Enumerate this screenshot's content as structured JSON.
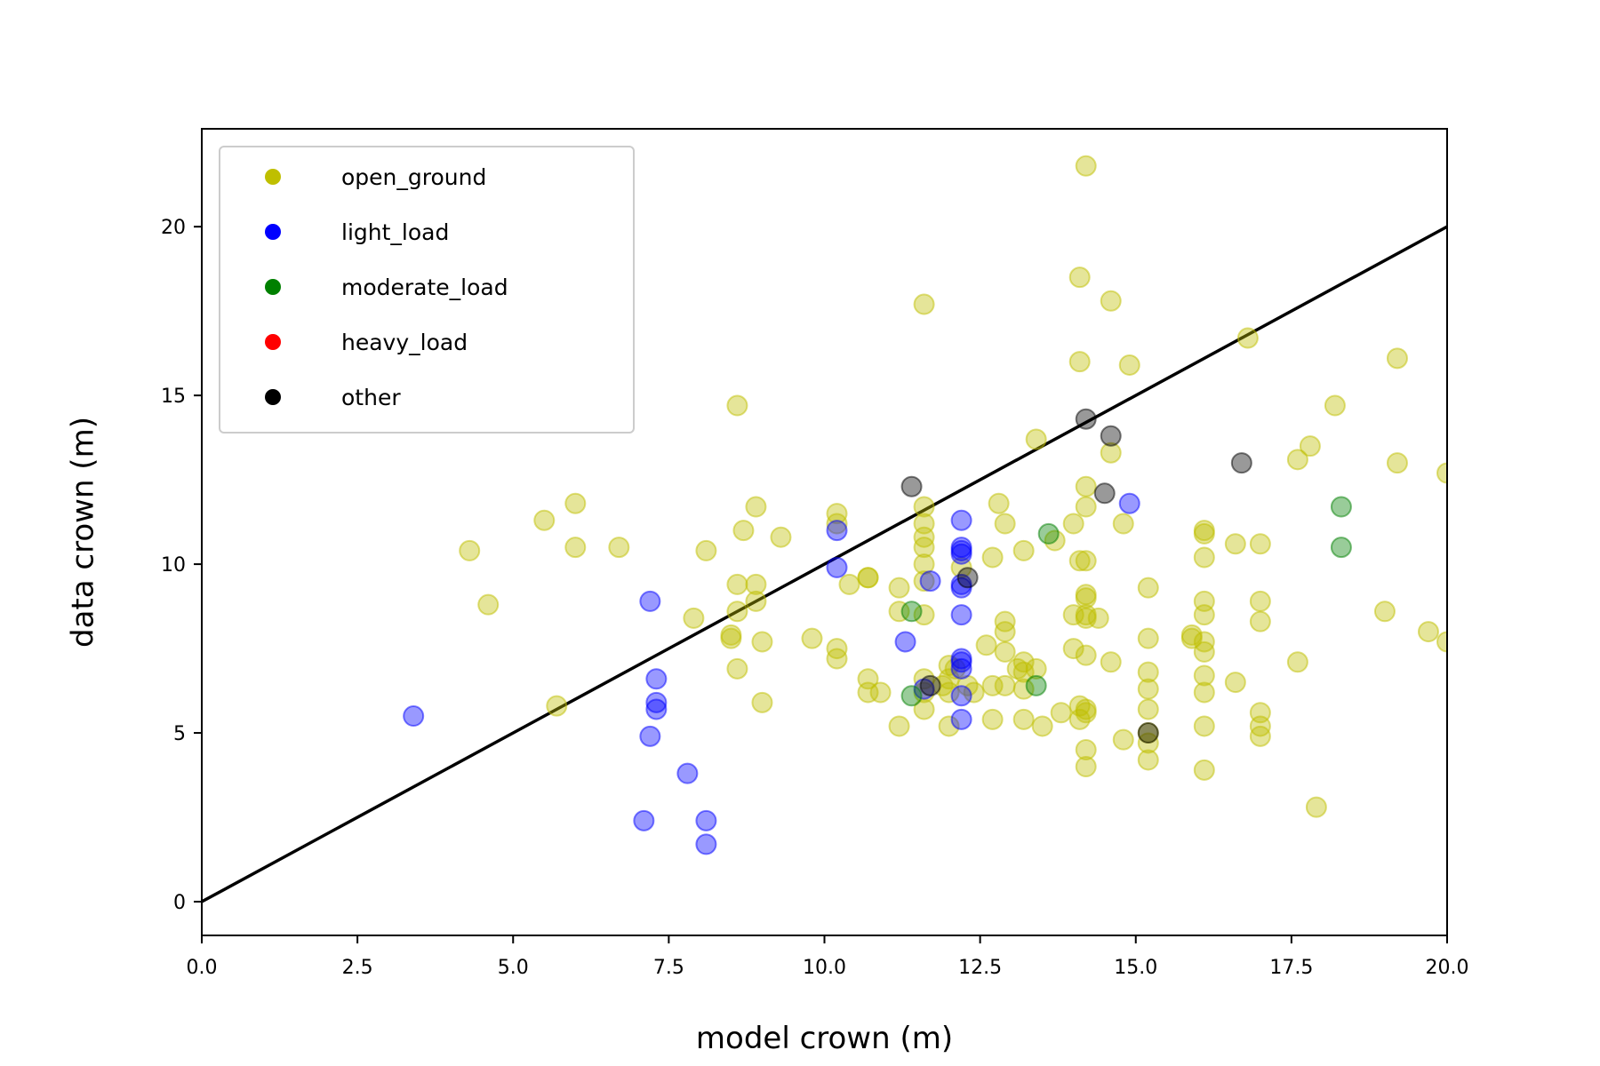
{
  "chart_data": {
    "type": "scatter",
    "title": "",
    "xlabel": "model crown (m)",
    "ylabel": "data crown (m)",
    "xlim": [
      0,
      20
    ],
    "ylim": [
      -1,
      22.9
    ],
    "xticks": [
      "0.0",
      "2.5",
      "5.0",
      "7.5",
      "10.0",
      "12.5",
      "15.0",
      "17.5",
      "20.0"
    ],
    "xtick_values": [
      0,
      2.5,
      5,
      7.5,
      10,
      12.5,
      15,
      17.5,
      20
    ],
    "yticks": [
      "0",
      "5",
      "10",
      "15",
      "20"
    ],
    "ytick_values": [
      0,
      5,
      10,
      15,
      20
    ],
    "grid": false,
    "legend_position": "top-left",
    "reference_line": {
      "x": [
        0,
        20
      ],
      "y": [
        0,
        20
      ],
      "color": "#000000"
    },
    "series": [
      {
        "name": "open_ground",
        "color": "#bfbf00",
        "alpha": 0.4,
        "points": [
          [
            4.3,
            10.4
          ],
          [
            4.6,
            8.8
          ],
          [
            5.5,
            11.3
          ],
          [
            6.0,
            11.8
          ],
          [
            6.0,
            10.5
          ],
          [
            6.7,
            10.5
          ],
          [
            5.7,
            5.8
          ],
          [
            8.1,
            10.4
          ],
          [
            7.9,
            8.4
          ],
          [
            8.5,
            7.9
          ],
          [
            8.5,
            7.8
          ],
          [
            8.6,
            9.4
          ],
          [
            8.6,
            8.6
          ],
          [
            8.6,
            6.9
          ],
          [
            8.7,
            11.0
          ],
          [
            8.6,
            14.7
          ],
          [
            8.9,
            11.7
          ],
          [
            8.9,
            9.4
          ],
          [
            8.9,
            8.9
          ],
          [
            9.0,
            7.7
          ],
          [
            9.0,
            5.9
          ],
          [
            9.3,
            10.8
          ],
          [
            9.8,
            7.8
          ],
          [
            10.2,
            11.5
          ],
          [
            10.2,
            11.2
          ],
          [
            10.2,
            7.5
          ],
          [
            10.2,
            7.2
          ],
          [
            10.4,
            9.4
          ],
          [
            10.7,
            9.6
          ],
          [
            10.7,
            9.6
          ],
          [
            10.7,
            6.6
          ],
          [
            10.7,
            6.2
          ],
          [
            11.2,
            9.3
          ],
          [
            11.2,
            8.6
          ],
          [
            11.2,
            5.2
          ],
          [
            11.6,
            17.7
          ],
          [
            11.6,
            11.7
          ],
          [
            11.6,
            11.2
          ],
          [
            11.6,
            10.8
          ],
          [
            11.6,
            10.5
          ],
          [
            11.6,
            10.0
          ],
          [
            11.6,
            9.5
          ],
          [
            11.6,
            8.5
          ],
          [
            11.6,
            6.6
          ],
          [
            11.6,
            6.2
          ],
          [
            11.6,
            5.7
          ],
          [
            12.0,
            7.0
          ],
          [
            12.0,
            6.6
          ],
          [
            12.0,
            6.2
          ],
          [
            12.0,
            5.2
          ],
          [
            12.2,
            9.9
          ],
          [
            12.3,
            6.4
          ],
          [
            12.4,
            6.2
          ],
          [
            12.6,
            7.6
          ],
          [
            12.7,
            6.4
          ],
          [
            12.7,
            5.4
          ],
          [
            12.7,
            10.2
          ],
          [
            12.8,
            11.8
          ],
          [
            12.9,
            11.2
          ],
          [
            12.9,
            8.3
          ],
          [
            12.9,
            8.0
          ],
          [
            12.9,
            7.4
          ],
          [
            12.9,
            6.4
          ],
          [
            13.2,
            10.4
          ],
          [
            13.2,
            7.1
          ],
          [
            13.2,
            6.8
          ],
          [
            13.2,
            6.3
          ],
          [
            13.2,
            5.4
          ],
          [
            13.4,
            13.7
          ],
          [
            13.4,
            6.9
          ],
          [
            13.5,
            5.2
          ],
          [
            13.7,
            10.7
          ],
          [
            14.0,
            11.2
          ],
          [
            14.0,
            8.5
          ],
          [
            14.0,
            7.5
          ],
          [
            14.1,
            18.5
          ],
          [
            14.1,
            16.0
          ],
          [
            14.1,
            10.1
          ],
          [
            14.1,
            5.8
          ],
          [
            14.1,
            5.4
          ],
          [
            14.2,
            21.8
          ],
          [
            14.2,
            12.3
          ],
          [
            14.2,
            11.7
          ],
          [
            14.2,
            10.1
          ],
          [
            14.2,
            9.1
          ],
          [
            14.2,
            9.0
          ],
          [
            14.2,
            8.5
          ],
          [
            14.2,
            8.4
          ],
          [
            14.2,
            7.3
          ],
          [
            14.2,
            5.7
          ],
          [
            14.2,
            5.6
          ],
          [
            14.2,
            4.5
          ],
          [
            14.2,
            4.0
          ],
          [
            14.4,
            8.4
          ],
          [
            14.6,
            17.8
          ],
          [
            14.6,
            13.3
          ],
          [
            14.6,
            7.1
          ],
          [
            14.8,
            11.2
          ],
          [
            14.8,
            4.8
          ],
          [
            14.9,
            15.9
          ],
          [
            15.2,
            9.3
          ],
          [
            15.2,
            7.8
          ],
          [
            15.2,
            6.8
          ],
          [
            15.2,
            6.3
          ],
          [
            15.2,
            5.7
          ],
          [
            15.2,
            5.0
          ],
          [
            15.2,
            4.2
          ],
          [
            15.9,
            7.9
          ],
          [
            15.9,
            7.8
          ],
          [
            16.1,
            11.0
          ],
          [
            16.1,
            10.9
          ],
          [
            16.1,
            10.2
          ],
          [
            16.1,
            8.9
          ],
          [
            16.1,
            8.5
          ],
          [
            16.1,
            7.7
          ],
          [
            16.1,
            7.4
          ],
          [
            16.1,
            6.7
          ],
          [
            16.1,
            6.2
          ],
          [
            16.1,
            5.2
          ],
          [
            16.1,
            3.9
          ],
          [
            16.6,
            10.6
          ],
          [
            16.6,
            6.5
          ],
          [
            16.8,
            16.7
          ],
          [
            17.0,
            10.6
          ],
          [
            17.0,
            8.9
          ],
          [
            17.0,
            8.3
          ],
          [
            17.0,
            5.6
          ],
          [
            17.0,
            5.2
          ],
          [
            17.0,
            4.9
          ],
          [
            17.6,
            13.1
          ],
          [
            17.6,
            7.1
          ],
          [
            17.8,
            13.5
          ],
          [
            17.9,
            2.8
          ],
          [
            18.2,
            14.7
          ],
          [
            19.0,
            8.6
          ],
          [
            19.2,
            16.1
          ],
          [
            19.2,
            13.0
          ],
          [
            19.7,
            8.0
          ],
          [
            20.0,
            12.7
          ],
          [
            20.0,
            7.7
          ],
          [
            11.9,
            6.4
          ],
          [
            12.1,
            6.9
          ],
          [
            10.9,
            6.2
          ],
          [
            13.1,
            6.9
          ],
          [
            13.8,
            5.6
          ],
          [
            15.2,
            4.7
          ]
        ]
      },
      {
        "name": "light_load",
        "color": "#0000ff",
        "alpha": 0.4,
        "points": [
          [
            3.4,
            5.5
          ],
          [
            7.2,
            8.9
          ],
          [
            7.3,
            6.6
          ],
          [
            7.3,
            5.9
          ],
          [
            7.3,
            5.7
          ],
          [
            7.2,
            4.9
          ],
          [
            7.8,
            3.8
          ],
          [
            7.1,
            2.4
          ],
          [
            8.1,
            2.4
          ],
          [
            8.1,
            1.7
          ],
          [
            10.2,
            11.0
          ],
          [
            10.2,
            9.9
          ],
          [
            11.3,
            7.7
          ],
          [
            11.7,
            9.5
          ],
          [
            12.2,
            11.3
          ],
          [
            12.2,
            10.5
          ],
          [
            12.2,
            10.4
          ],
          [
            12.2,
            10.3
          ],
          [
            12.2,
            9.4
          ],
          [
            12.2,
            9.3
          ],
          [
            12.2,
            8.5
          ],
          [
            12.2,
            7.2
          ],
          [
            12.2,
            7.1
          ],
          [
            12.2,
            6.9
          ],
          [
            12.2,
            6.1
          ],
          [
            12.2,
            5.4
          ],
          [
            14.9,
            11.8
          ],
          [
            11.6,
            6.3
          ]
        ]
      },
      {
        "name": "moderate_load",
        "color": "#008000",
        "alpha": 0.4,
        "points": [
          [
            11.4,
            8.6
          ],
          [
            11.4,
            6.1
          ],
          [
            13.6,
            10.9
          ],
          [
            13.4,
            6.4
          ],
          [
            18.3,
            11.7
          ],
          [
            18.3,
            10.5
          ]
        ]
      },
      {
        "name": "heavy_load",
        "color": "#ff0000",
        "alpha": 0.4,
        "points": []
      },
      {
        "name": "other",
        "color": "#000000",
        "alpha": 0.4,
        "points": [
          [
            11.4,
            12.3
          ],
          [
            12.3,
            9.6
          ],
          [
            14.2,
            14.3
          ],
          [
            14.6,
            13.8
          ],
          [
            14.5,
            12.1
          ],
          [
            16.7,
            13.0
          ],
          [
            15.2,
            5.0
          ],
          [
            11.7,
            6.4
          ]
        ]
      }
    ]
  }
}
